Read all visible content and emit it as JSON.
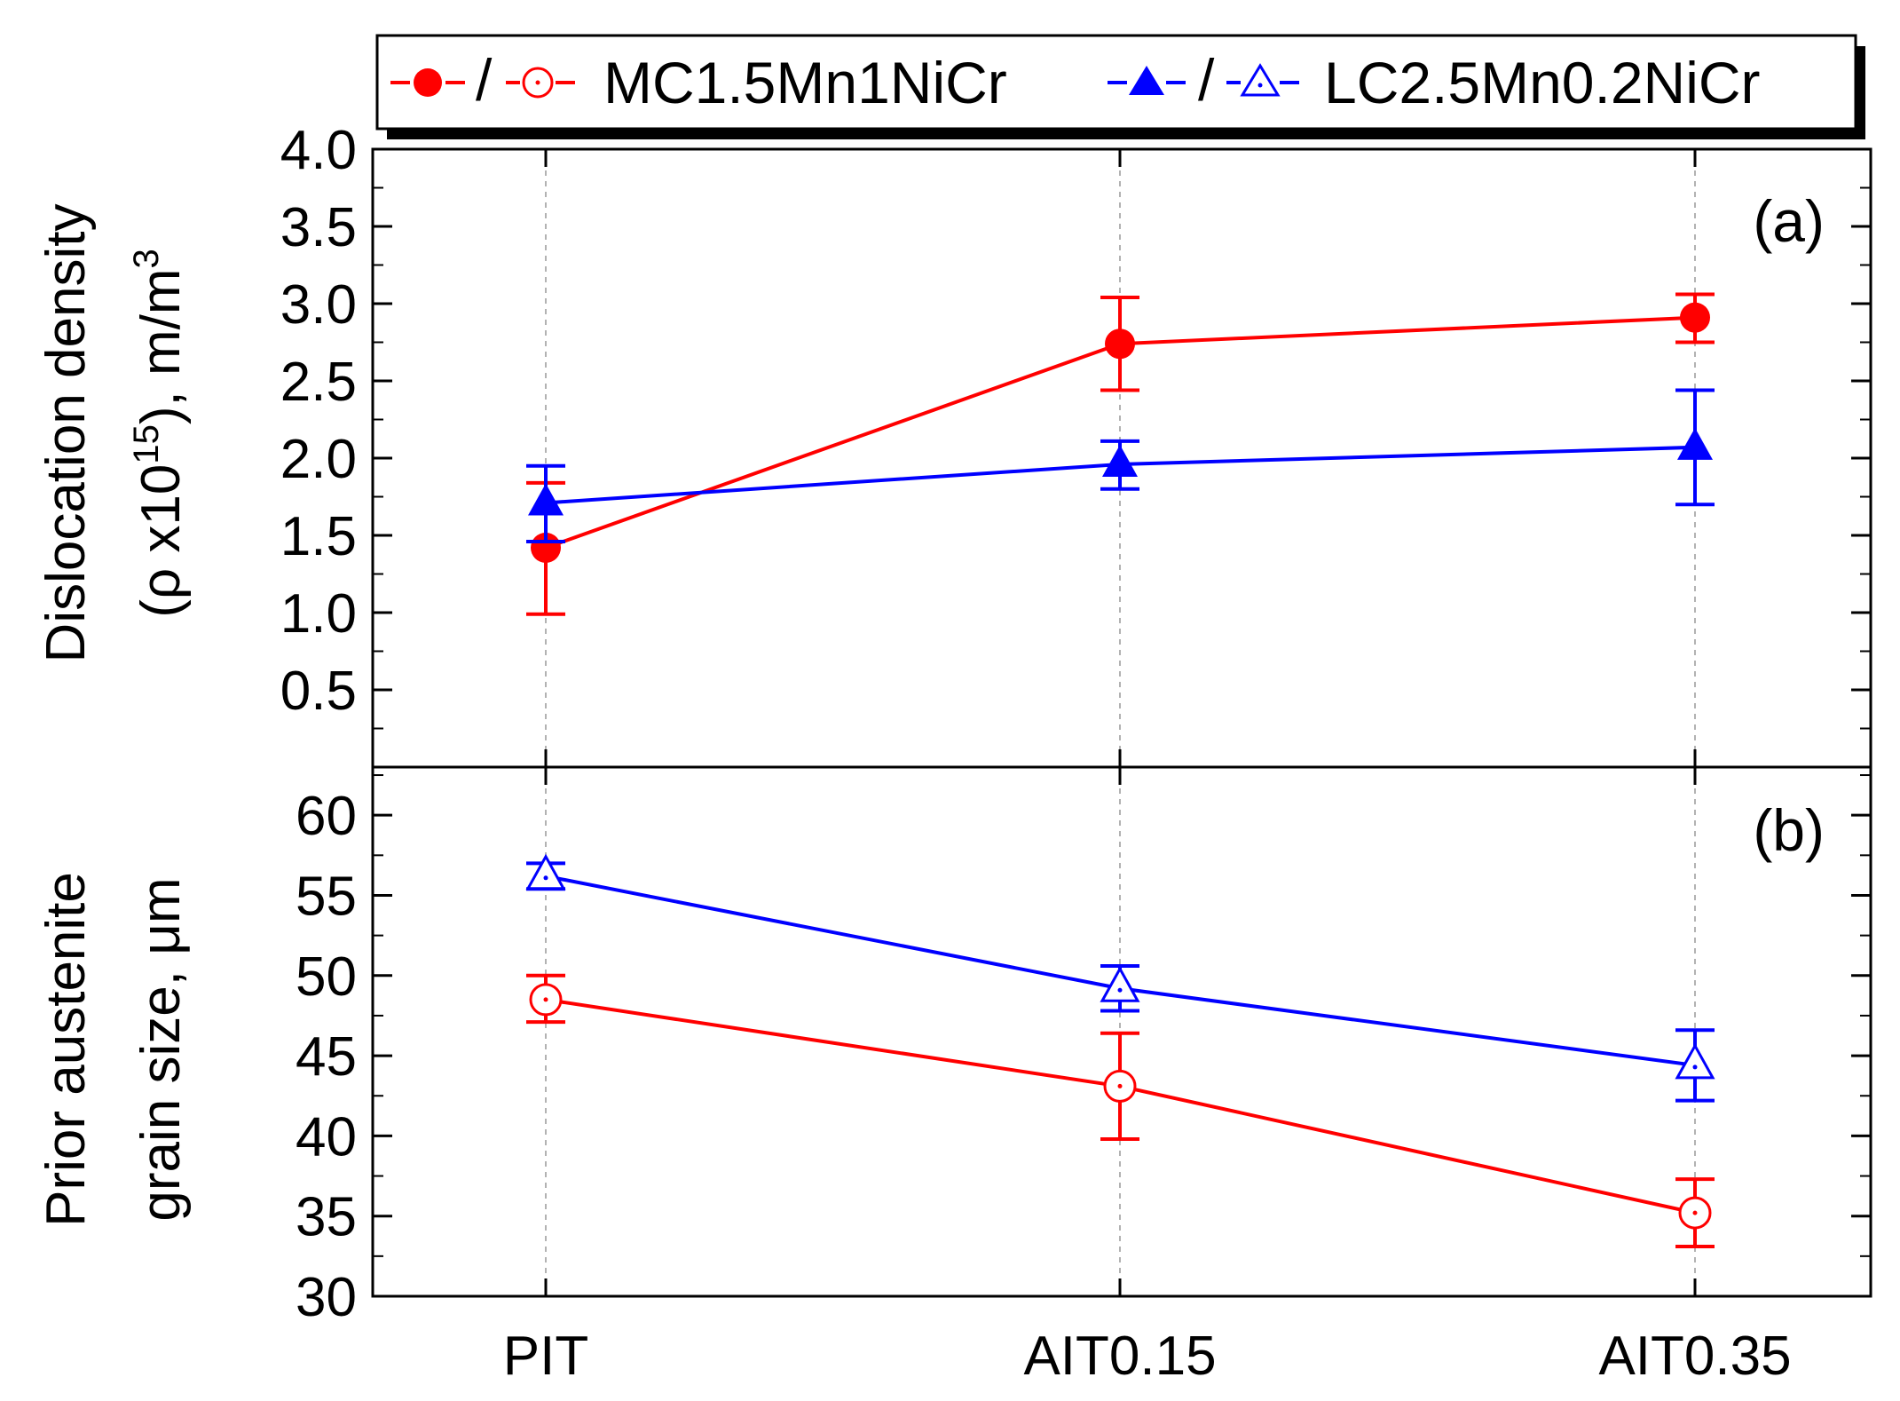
{
  "legend": {
    "mc_label": "MC1.5Mn1NiCr",
    "lc_label": "LC2.5Mn0.2NiCr",
    "separator": "/"
  },
  "chart_data": [
    {
      "type": "line",
      "panel_label": "(a)",
      "ylabel_line1": "Dislocation density",
      "ylabel_line2_pre": "(ρ x10",
      "ylabel_line2_sup": "15",
      "ylabel_line2_post": "), m/m",
      "ylabel_line2_sup2": "3",
      "categories": [
        "PIT",
        "AIT0.15",
        "AIT0.35"
      ],
      "ylim": [
        0.0,
        4.0
      ],
      "yticks": [
        "0.5",
        "1.0",
        "1.5",
        "2.0",
        "2.5",
        "3.0",
        "3.5",
        "4.0"
      ],
      "series": [
        {
          "name": "MC1.5Mn1NiCr",
          "color": "#ff0000",
          "marker": "filled-circle",
          "values": [
            1.42,
            2.74,
            2.91
          ],
          "err_low": [
            0.99,
            2.44,
            2.75
          ],
          "err_high": [
            1.84,
            3.04,
            3.06
          ]
        },
        {
          "name": "LC2.5Mn0.2NiCr",
          "color": "#0000ff",
          "marker": "filled-triangle",
          "values": [
            1.71,
            1.96,
            2.07
          ],
          "err_low": [
            1.46,
            1.8,
            1.7
          ],
          "err_high": [
            1.95,
            2.11,
            2.44
          ]
        }
      ]
    },
    {
      "type": "line",
      "panel_label": "(b)",
      "ylabel_line1": "Prior austenite",
      "ylabel_line2": "grain size, μm",
      "categories": [
        "PIT",
        "AIT0.15",
        "AIT0.35"
      ],
      "ylim": [
        30,
        63
      ],
      "yticks": [
        "30",
        "35",
        "40",
        "45",
        "50",
        "55",
        "60"
      ],
      "series": [
        {
          "name": "MC1.5Mn1NiCr",
          "color": "#ff0000",
          "marker": "open-circle",
          "values": [
            48.5,
            43.1,
            35.2
          ],
          "err_low": [
            47.1,
            39.8,
            33.1
          ],
          "err_high": [
            50.0,
            46.4,
            37.3
          ]
        },
        {
          "name": "LC2.5Mn0.2NiCr",
          "color": "#0000ff",
          "marker": "open-triangle",
          "values": [
            56.2,
            49.2,
            44.4
          ],
          "err_low": [
            55.4,
            47.8,
            42.2
          ],
          "err_high": [
            57.0,
            50.6,
            46.6
          ]
        }
      ]
    }
  ]
}
